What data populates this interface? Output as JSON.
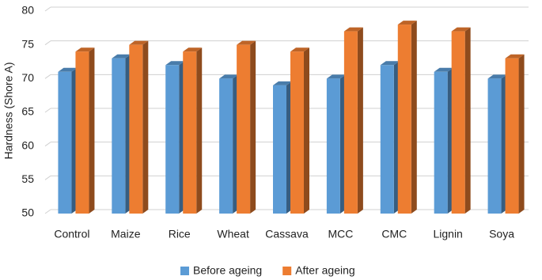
{
  "chart_data": {
    "type": "bar3d",
    "y_label": "Hardness (Shore A)",
    "categories": [
      "Control",
      "Maize",
      "Rice",
      "Wheat",
      "Cassava",
      "MCC",
      "CMC",
      "Lignin",
      "Soya"
    ],
    "series": [
      {
        "name": "Before ageing",
        "color": "#5b9bd5",
        "values": [
          71,
          73,
          72,
          70,
          69,
          70,
          72,
          71,
          70
        ]
      },
      {
        "name": "After ageing",
        "color": "#ed7d31",
        "values": [
          74,
          75,
          74,
          75,
          74,
          77,
          78,
          77,
          73
        ]
      }
    ],
    "ylim": [
      50,
      80
    ],
    "yticks": [
      50,
      55,
      60,
      65,
      70,
      75,
      80
    ],
    "grid": true,
    "legend": "bottom"
  }
}
